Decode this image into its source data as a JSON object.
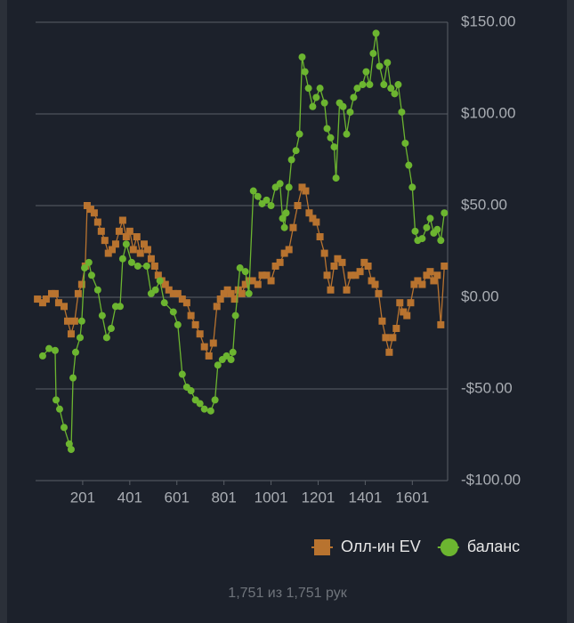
{
  "chart_data": {
    "type": "line",
    "xlim": [
      1,
      1751
    ],
    "xticks": [
      201,
      401,
      601,
      801,
      1001,
      1201,
      1401,
      1601
    ],
    "ylim": [
      -100,
      150
    ],
    "yticks": [
      {
        "value": -100,
        "label": "-$100.00"
      },
      {
        "value": -50,
        "label": "-$50.00"
      },
      {
        "value": 0,
        "label": "$0.00"
      },
      {
        "value": 50,
        "label": "$50.00"
      },
      {
        "value": 100,
        "label": "$100.00"
      },
      {
        "value": 150,
        "label": "$150.00"
      }
    ],
    "grid": true,
    "legend": "bottom-right",
    "series": [
      {
        "name": "Олл-ин EV",
        "color": "#b8732f",
        "marker": "square",
        "x": [
          9,
          31,
          46,
          69,
          84,
          99,
          122,
          137,
          152,
          167,
          182,
          197,
          212,
          220,
          235,
          250,
          265,
          280,
          295,
          310,
          326,
          341,
          356,
          371,
          386,
          401,
          416,
          431,
          446,
          462,
          477,
          492,
          507,
          522,
          537,
          552,
          567,
          586,
          605,
          624,
          643,
          661,
          680,
          699,
          718,
          737,
          756,
          771,
          786,
          801,
          816,
          831,
          846,
          862,
          877,
          892,
          907,
          922,
          945,
          963,
          982,
          1001,
          1020,
          1039,
          1058,
          1077,
          1095,
          1114,
          1133,
          1148,
          1163,
          1178,
          1193,
          1209,
          1228,
          1239,
          1254,
          1269,
          1284,
          1303,
          1322,
          1341,
          1360,
          1379,
          1397,
          1413,
          1428,
          1443,
          1458,
          1473,
          1488,
          1503,
          1518,
          1533,
          1548,
          1563,
          1578,
          1594,
          1609,
          1624,
          1643,
          1662,
          1677,
          1692,
          1707,
          1722,
          1737
        ],
        "values": [
          -1,
          -3,
          -1,
          2,
          2,
          -3,
          -5,
          -13,
          -20,
          -13,
          2,
          7,
          17,
          50,
          48,
          46,
          41,
          36,
          31,
          24,
          26,
          29,
          36,
          42,
          33,
          36,
          26,
          33,
          24,
          29,
          26,
          21,
          17,
          12,
          9,
          7,
          4,
          2,
          2,
          -1,
          -3,
          -10,
          -15,
          -20,
          -27,
          -32,
          -25,
          -5,
          -1,
          2,
          4,
          2,
          -1,
          4,
          2,
          7,
          9,
          9,
          7,
          12,
          12,
          9,
          17,
          19,
          24,
          26,
          38,
          50,
          60,
          58,
          46,
          43,
          41,
          33,
          24,
          12,
          4,
          17,
          21,
          19,
          4,
          12,
          12,
          14,
          19,
          17,
          9,
          7,
          2,
          -13,
          -22,
          -30,
          -22,
          -17,
          -3,
          -8,
          -10,
          -3,
          7,
          9,
          7,
          12,
          14,
          9,
          12,
          -15,
          17
        ]
      },
      {
        "name": "баланс",
        "color": "#6cb530",
        "marker": "circle",
        "x": [
          31,
          58,
          84,
          88,
          103,
          122,
          144,
          152,
          160,
          171,
          190,
          197,
          209,
          227,
          239,
          265,
          284,
          303,
          322,
          341,
          360,
          371,
          386,
          409,
          435,
          473,
          492,
          510,
          529,
          548,
          586,
          605,
          624,
          643,
          661,
          680,
          699,
          718,
          745,
          763,
          775,
          794,
          812,
          831,
          839,
          850,
          869,
          892,
          907,
          926,
          945,
          963,
          982,
          1001,
          1020,
          1039,
          1050,
          1058,
          1065,
          1077,
          1088,
          1107,
          1122,
          1133,
          1145,
          1160,
          1178,
          1193,
          1209,
          1228,
          1239,
          1254,
          1269,
          1277,
          1292,
          1307,
          1322,
          1337,
          1352,
          1367,
          1390,
          1405,
          1420,
          1435,
          1447,
          1462,
          1480,
          1495,
          1510,
          1526,
          1541,
          1556,
          1571,
          1586,
          1601,
          1613,
          1624,
          1643,
          1662,
          1677,
          1692,
          1707,
          1722,
          1737
        ],
        "values": [
          -32,
          -28,
          -29,
          -56,
          -61,
          -71,
          -80,
          -83,
          -44,
          -30,
          -22,
          -13,
          16,
          19,
          12,
          4,
          -10,
          -22,
          -17,
          -5,
          -5,
          21,
          29,
          19,
          17,
          17,
          2,
          4,
          9,
          -3,
          -8,
          -15,
          -42,
          -49,
          -51,
          -56,
          -58,
          -61,
          -62,
          -56,
          -37,
          -34,
          -32,
          -34,
          -30,
          -10,
          16,
          14,
          2,
          58,
          55,
          51,
          53,
          50,
          60,
          62,
          43,
          38,
          46,
          60,
          75,
          80,
          89,
          131,
          123,
          114,
          104,
          109,
          114,
          106,
          92,
          87,
          82,
          65,
          106,
          104,
          89,
          101,
          109,
          114,
          116,
          123,
          116,
          133,
          144,
          126,
          116,
          128,
          114,
          111,
          116,
          101,
          84,
          72,
          60,
          36,
          31,
          32,
          38,
          43,
          35,
          37,
          31,
          46
        ]
      }
    ]
  },
  "footer": "1,751 из 1,751 рук"
}
